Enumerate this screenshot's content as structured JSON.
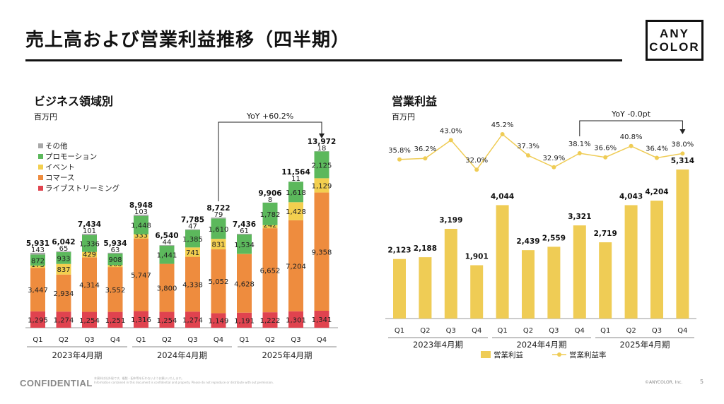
{
  "title": "売上高および営業利益推移（四半期）",
  "logo": {
    "line1": "ANY",
    "line2": "COLOR"
  },
  "footer": {
    "confidential": "CONFIDENTIAL",
    "note1": "本資料は社外秘です。複製・配布等を行わないようお願いいたします。",
    "note2": "Information contained in this document is confidential and property. Please do not reproduce or distribute with out permission.",
    "copyright": "©ANYCOLOR, Inc.",
    "page": "5"
  },
  "chart_data": [
    {
      "type": "bar",
      "stacked": true,
      "title": "ビジネス領域別",
      "unit": "百万円",
      "categories": [
        "Q1",
        "Q2",
        "Q3",
        "Q4",
        "Q1",
        "Q2",
        "Q3",
        "Q4",
        "Q1",
        "Q2",
        "Q3",
        "Q4"
      ],
      "groups": [
        "2023年4月期",
        "2024年4月期",
        "2025年4月期"
      ],
      "legend": [
        "その他",
        "プロモーション",
        "イベント",
        "コマース",
        "ライブストリーミング"
      ],
      "series": [
        {
          "name": "ライブストリーミング",
          "color": "#e0434f",
          "values": [
            1295,
            1274,
            1254,
            1251,
            1316,
            1254,
            1274,
            1149,
            1191,
            1222,
            1301,
            1341
          ]
        },
        {
          "name": "コマース",
          "color": "#ee8c3e",
          "values": [
            3447,
            2934,
            4314,
            3552,
            5747,
            3800,
            4338,
            5052,
            4628,
            6652,
            7204,
            9358
          ]
        },
        {
          "name": "イベント",
          "color": "#f3cf4f",
          "values": [
            173,
            837,
            429,
            160,
            333,
            0,
            741,
            831,
            21,
            242,
            1428,
            1129
          ]
        },
        {
          "name": "プロモーション",
          "color": "#5cb85c",
          "values": [
            872,
            933,
            1336,
            908,
            1448,
            1441,
            1385,
            1610,
            1534,
            1782,
            1618,
            2125
          ]
        },
        {
          "name": "その他",
          "color": "#a9a9a9",
          "values": [
            143,
            65,
            101,
            63,
            103,
            44,
            47,
            79,
            61,
            8,
            11,
            18
          ]
        }
      ],
      "totals": [
        5931,
        6042,
        7434,
        5934,
        8948,
        6540,
        7785,
        8722,
        7436,
        9906,
        11564,
        13972
      ],
      "totals_display": [
        "5,931",
        "6,042",
        "7,434",
        "5,934",
        "8,948",
        "6,540",
        "7,785",
        "8,722",
        "7,436",
        "9,906",
        "11,564",
        "13,972"
      ],
      "labels": [
        [
          "1,295",
          "1,274",
          "1,254",
          "1,251",
          "1,316",
          "1,254",
          "1,274",
          "1,149",
          "1,191",
          "1,222",
          "1,301",
          "1,341"
        ],
        [
          "3,447",
          "2,934",
          "4,314",
          "3,552",
          "5,747",
          "3,800",
          "4,338",
          "5,052",
          "4,628",
          "6,652",
          "7,204",
          "9,358"
        ],
        [
          "173",
          "837",
          "429",
          "160",
          "333",
          "",
          "741",
          "831",
          "21",
          "242",
          "1,428",
          "1,129"
        ],
        [
          "872",
          "933",
          "1,336",
          "908",
          "1,448",
          "1,441",
          "1,385",
          "1,610",
          "1,534",
          "1,782",
          "1,618",
          "2,125"
        ],
        [
          "143",
          "65",
          "101",
          "63",
          "103",
          "44",
          "47",
          "79",
          "61",
          "8",
          "11",
          "18"
        ]
      ],
      "ylim": [
        0,
        14500
      ],
      "annotation": "YoY +60.2%"
    },
    {
      "type": "bar+line",
      "title": "営業利益",
      "unit": "百万円",
      "categories": [
        "Q1",
        "Q2",
        "Q3",
        "Q4",
        "Q1",
        "Q2",
        "Q3",
        "Q4",
        "Q1",
        "Q2",
        "Q3",
        "Q4"
      ],
      "groups": [
        "2023年4月期",
        "2024年4月期",
        "2025年4月期"
      ],
      "bar_series": {
        "name": "営業利益",
        "color": "#efcc55",
        "values": [
          2123,
          2188,
          3199,
          1901,
          4044,
          2439,
          2559,
          3321,
          2719,
          4043,
          4204,
          5314
        ]
      },
      "bar_labels": [
        "2,123",
        "2,188",
        "3,199",
        "1,901",
        "4,044",
        "2,439",
        "2,559",
        "3,321",
        "2,719",
        "4,043",
        "4,204",
        "5,314"
      ],
      "line_series": {
        "name": "営業利益率",
        "color": "#efcc55",
        "values": [
          35.8,
          36.2,
          43.0,
          32.0,
          45.2,
          37.3,
          32.9,
          38.1,
          36.6,
          40.8,
          36.4,
          38.0
        ]
      },
      "line_labels": [
        "35.8%",
        "36.2%",
        "43.0%",
        "32.0%",
        "45.2%",
        "37.3%",
        "32.9%",
        "38.1%",
        "36.6%",
        "40.8%",
        "36.4%",
        "38.0%"
      ],
      "ylim": [
        0,
        5600
      ],
      "annotation": "YoY -0.0pt"
    }
  ]
}
